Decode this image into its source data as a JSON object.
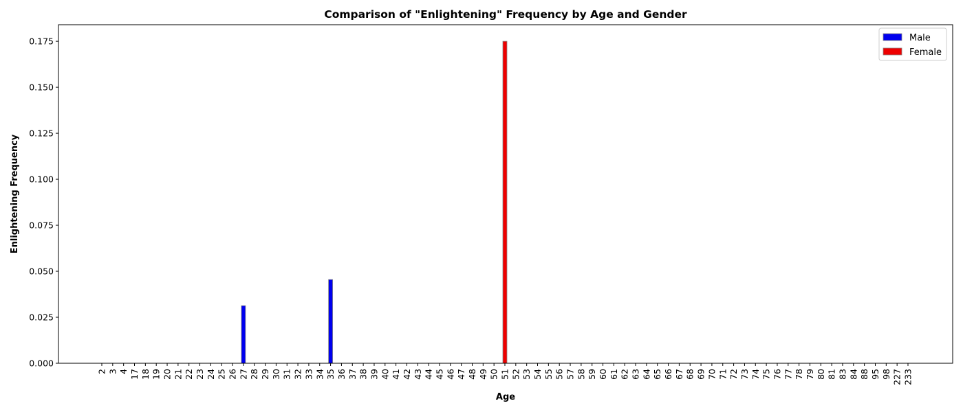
{
  "chart_data": {
    "type": "bar",
    "title": "Comparison of \"Enlightening\" Frequency by Age and Gender",
    "xlabel": "Age",
    "ylabel": "Enlightening Frequency",
    "ylim": [
      0,
      0.184
    ],
    "yticks": [
      "0.000",
      "0.025",
      "0.050",
      "0.075",
      "0.100",
      "0.125",
      "0.150",
      "0.175"
    ],
    "categories": [
      "2",
      "3",
      "4",
      "17",
      "18",
      "19",
      "20",
      "21",
      "22",
      "23",
      "24",
      "25",
      "26",
      "27",
      "28",
      "29",
      "30",
      "31",
      "32",
      "33",
      "34",
      "35",
      "36",
      "37",
      "38",
      "39",
      "40",
      "41",
      "42",
      "43",
      "44",
      "45",
      "46",
      "47",
      "48",
      "49",
      "50",
      "51",
      "52",
      "53",
      "54",
      "55",
      "56",
      "57",
      "58",
      "59",
      "60",
      "61",
      "62",
      "63",
      "64",
      "65",
      "66",
      "67",
      "68",
      "69",
      "70",
      "71",
      "72",
      "73",
      "74",
      "75",
      "76",
      "77",
      "78",
      "79",
      "80",
      "81",
      "83",
      "84",
      "88",
      "95",
      "98",
      "227",
      "233"
    ],
    "series": [
      {
        "name": "Male",
        "color": "#0000ee",
        "values": {
          "27": 0.0313,
          "35": 0.0455
        }
      },
      {
        "name": "Female",
        "color": "#ee0000",
        "values": {
          "51": 0.175
        }
      }
    ],
    "legend_position": "top-right",
    "grid": false
  }
}
